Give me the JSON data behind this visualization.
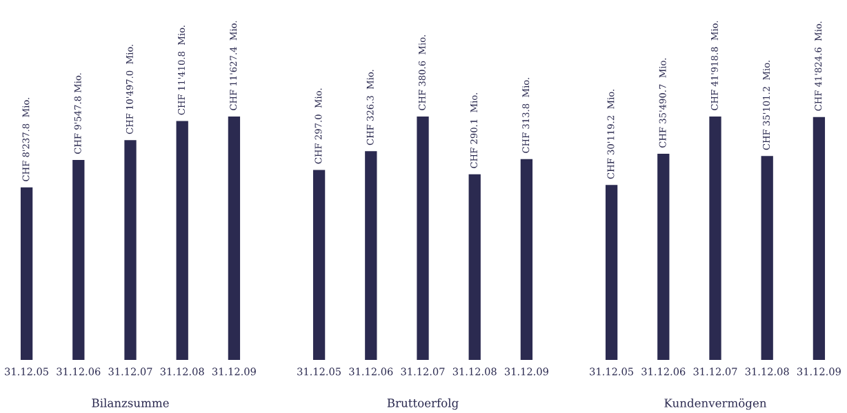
{
  "chart_data": [
    {
      "type": "bar",
      "xlabel": "Bilanzsumme",
      "categories": [
        "31.12.05",
        "31.12.06",
        "31.12.07",
        "31.12.08",
        "31.12.09"
      ],
      "values": [
        8237.8,
        9547.8,
        10497.0,
        11410.8,
        11627.4
      ],
      "value_labels": [
        "CHF 8'237.8  Mio.",
        "CHF 9'547.8 Mio.",
        "CHF 10'497.0  Mio.",
        "CHF 11'410.8  Mio.",
        "CHF 11'627.4  Mio."
      ],
      "color": "#2b2a50"
    },
    {
      "type": "bar",
      "xlabel": "Bruttoerfolg",
      "categories": [
        "31.12.05",
        "31.12.06",
        "31.12.07",
        "31.12.08",
        "31.12.09"
      ],
      "values": [
        297.0,
        326.3,
        380.6,
        290.1,
        313.8
      ],
      "value_labels": [
        "CHF 297.0  Mio.",
        "CHF 326.3  Mio.",
        "CHF 380.6  Mio.",
        "CHF 290.1  Mio.",
        "CHF 313.8  Mio."
      ],
      "color": "#2b2a50"
    },
    {
      "type": "bar",
      "xlabel": "Kundenvermögen",
      "categories": [
        "31.12.05",
        "31.12.06",
        "31.12.07",
        "31.12.08",
        "31.12.09"
      ],
      "values": [
        30119.2,
        35490.7,
        41918.8,
        35101.2,
        41824.6
      ],
      "value_labels": [
        "CHF 30'119.2  Mio.",
        "CHF 35'490.7  Mio.",
        "CHF 41'918.8  Mio.",
        "CHF 35'101.2  Mio.",
        "CHF 41'824.6  Mio."
      ],
      "color": "#2b2a50"
    }
  ]
}
